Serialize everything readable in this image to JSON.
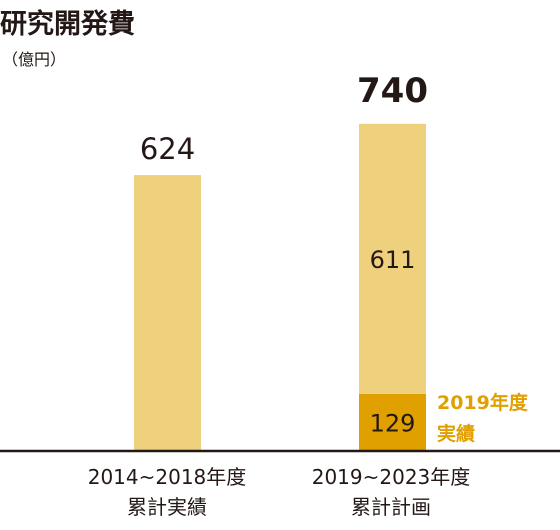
{
  "title": "研究開発費",
  "unit": "（億円）",
  "colors": {
    "bar": "#efd17d",
    "highlight": "#e0a000",
    "highlight_text": "#e0a000",
    "axis": "#231815",
    "text": "#231815"
  },
  "chart_data": {
    "type": "bar",
    "stacked": true,
    "categories": [
      {
        "line1": "2014~2018年度",
        "line2": "累計実績"
      },
      {
        "line1": "2019~2023年度",
        "line2": "累計計画"
      }
    ],
    "series": [
      {
        "name": "2019年度実績",
        "values": [
          null,
          129
        ],
        "label_line1": "2019年度",
        "label_line2": "実績"
      },
      {
        "values": [
          624,
          611
        ]
      }
    ],
    "totals": [
      624,
      740
    ],
    "ylim": [
      0,
      1020
    ],
    "grid": false,
    "legend": "annotation-right"
  }
}
